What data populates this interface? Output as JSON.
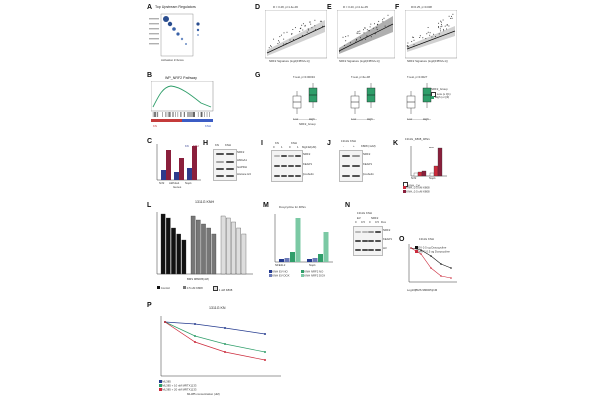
{
  "figure": {
    "panels": {
      "A": {
        "label": "A",
        "title": "Top Upstream Regulators",
        "xlabel": "Activation Z-Score"
      },
      "B": {
        "label": "B",
        "title": "WP_NRF2 Pathway",
        "ylabel": "Enrichment Score",
        "left": "KN",
        "right": "KNH"
      },
      "C": {
        "label": "C",
        "xlabel": "Genes",
        "genes": [
          "Nrf2",
          "Aldh1a1",
          "Nqo1"
        ],
        "legend": [
          "KN",
          "KNH"
        ]
      },
      "D": {
        "label": "D",
        "stat": "R = 0.48, p=1.4e-06",
        "xlabel": "NRF2 Signature (log2(FPKM+1))",
        "ylabel": "HMGA Signature Score"
      },
      "E": {
        "label": "E",
        "stat": "R = 0.40, p=4.1e-05",
        "xlabel": "NRF2 Signature (log2(FPKM+1))",
        "ylabel": "HMGA Signature Score"
      },
      "F": {
        "label": "F",
        "stat": "R=0.25, p=0.008",
        "xlabel": "NRF2 Signature (log2(FPKM+1))",
        "ylabel": "HMGA Signature Score"
      },
      "G": {
        "label": "G",
        "stats": [
          "T-test, p=0.00034",
          "T-test, p=4e-08",
          "T-test, p=0.0027"
        ],
        "xlabel": "NRF2_Group",
        "groups": [
          "Low",
          "High"
        ],
        "legend_title": "NRF2_Group",
        "legend": [
          "Low (≤ Q1)",
          "High (≥ Q3)"
        ]
      },
      "H": {
        "label": "H",
        "cols": [
          "KN",
          "KNH"
        ],
        "rows": [
          "NRF2",
          "HMGA1",
          "GAPDH",
          "Histone H3"
        ]
      },
      "I": {
        "label": "I",
        "top": [
          "KN",
          "KNH"
        ],
        "treat": "Mg132(uM)",
        "doses": [
          "0",
          "1",
          "0",
          "1"
        ],
        "rows": [
          "NRF2",
          "KEAP1",
          "β-tubulin"
        ]
      },
      "J": {
        "label": "J",
        "title": "1311G KNH",
        "treat": "K808 (1uM)",
        "doses": [
          "-",
          "+"
        ],
        "rows": [
          "NRF2",
          "KEAP1",
          "β-tubulin"
        ]
      },
      "K": {
        "label": "K",
        "title": "1311G_K808_48hrs",
        "ylabel": "Relative Expression",
        "genes": [
          "Nrf2",
          "Nqo1"
        ],
        "legend": [
          "KNH_Ctrl",
          "KNH_0.5 uM K808",
          "KNH_0.5 uM K808"
        ],
        "sig": "****"
      },
      "L": {
        "label": "L",
        "title": "1311G KNH",
        "ylabel": "Relative Viability",
        "xlabel": "BMS 986005(nM)",
        "legend": [
          "Control",
          "0.5 uM K808",
          "1 uM K808"
        ],
        "doses": [
          "0",
          "0.3",
          "3",
          "10",
          "50"
        ]
      },
      "M": {
        "label": "M",
        "title": "Doxycycline for 48hrs",
        "ylabel": "Relative Expression",
        "genes": [
          "NFE2L2",
          "Nqo1"
        ],
        "legend": [
          "KNH EV NO",
          "KNH EV DOX",
          "KNH NRF2 NO",
          "KNH NRF2 DOX"
        ]
      },
      "N": {
        "label": "N",
        "title": "1311G KNH",
        "groups": [
          "EV",
          "NRF2"
        ],
        "doses": [
          "0",
          "0.5",
          "0",
          "0.5"
        ],
        "dox": "Dox",
        "rows": [
          "NRF2",
          "KEAP1",
          "H3"
        ]
      },
      "O": {
        "label": "O",
        "title": "1311G KNH",
        "ylabel": "Relative Viability",
        "xlabel": "Log10[BMS 986005]/nM",
        "legend": [
          "EV 0.5 ug Doxycycline",
          "NRF2 0.5 ug Doxycycline"
        ]
      },
      "P": {
        "label": "P",
        "title": "1311G KN",
        "ylabel": "Relative Viability",
        "xlabel": "ML385 concentration (uM)",
        "legend": [
          "ML385",
          "ML385 + 10 nM MRTX1133",
          "ML385 + 20 nM MRTX1133"
        ]
      }
    },
    "colors": {
      "kn": "#2e3a8c",
      "knh": "#8a1f3c",
      "green": "#2f9e6a",
      "red": "#cc2b3c",
      "navy": "#243a8f",
      "gray": "#9a9a9a"
    }
  }
}
